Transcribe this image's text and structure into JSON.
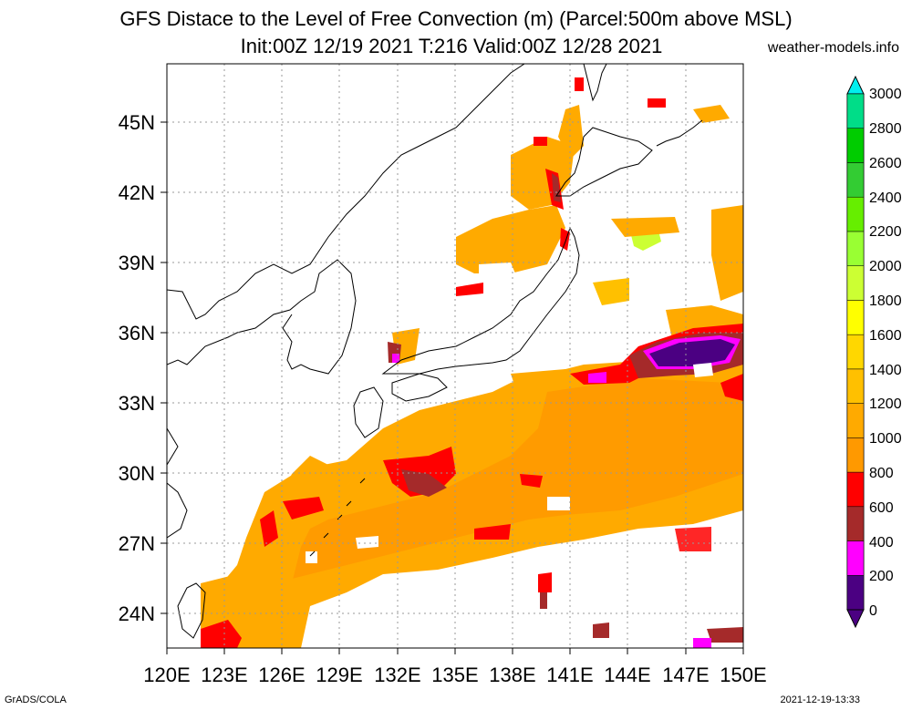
{
  "title": {
    "line1": "GFS Distace to the Level of Free Convection (m) (Parcel:500m above MSL)",
    "line2": "Init:00Z 12/19 2021 T:216 Valid:00Z 12/28 2021",
    "site": "weather-models.info"
  },
  "axes": {
    "x_ticks": [
      "120E",
      "123E",
      "126E",
      "129E",
      "132E",
      "135E",
      "138E",
      "141E",
      "144E",
      "147E",
      "150E"
    ],
    "y_ticks": [
      "24N",
      "27N",
      "30N",
      "33N",
      "36N",
      "39N",
      "42N",
      "45N"
    ],
    "lon_range": [
      120,
      150
    ],
    "lat_range": [
      22.5,
      47.5
    ]
  },
  "legend": {
    "levels": [
      "0",
      "200",
      "400",
      "600",
      "800",
      "1000",
      "1200",
      "1400",
      "1600",
      "1800",
      "2000",
      "2200",
      "2400",
      "2600",
      "2800",
      "3000"
    ],
    "colors": [
      "#4b0082",
      "#ff00ff",
      "#a52a2a",
      "#ff0000",
      "#ff9900",
      "#ffaa00",
      "#ffc000",
      "#ffd700",
      "#ffff00",
      "#ccff33",
      "#99ff33",
      "#66ee00",
      "#33cc33",
      "#00cc00",
      "#00dd88",
      "#00eeee",
      "#00e0e0"
    ]
  },
  "footer": {
    "left": "GrADS/COLA",
    "right": "2021-12-19-13:33"
  }
}
